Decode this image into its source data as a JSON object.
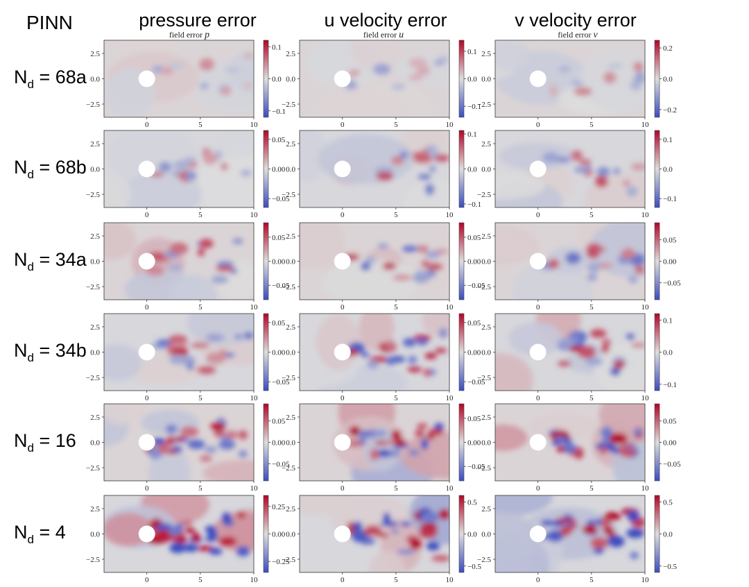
{
  "figure": {
    "method_label": "PINN",
    "column_headers": [
      "pressure error",
      "u velocity error",
      "v velocity error"
    ],
    "subplot_titles": [
      "field error ",
      "field error ",
      "field error "
    ],
    "subplot_title_vars": [
      "p",
      "u",
      "v"
    ],
    "row_labels": [
      {
        "prefix": "N",
        "sub": "d",
        "value": " = 68a"
      },
      {
        "prefix": "N",
        "sub": "d",
        "value": " = 68b"
      },
      {
        "prefix": "N",
        "sub": "d",
        "value": " = 34a"
      },
      {
        "prefix": "N",
        "sub": "d",
        "value": " = 34b"
      },
      {
        "prefix": "N",
        "sub": "d",
        "value": " = 16"
      },
      {
        "prefix": "N",
        "sub": "d",
        "value": " = 4"
      }
    ],
    "colors": {
      "cmap_low": "#3b4cc0",
      "cmap_mid": "#dddddd",
      "cmap_high": "#b40426",
      "cylinder": "#ffffff"
    }
  },
  "chart_data": {
    "type": "heatmap",
    "colormap": "coolwarm",
    "x_ticks": [
      "0",
      "5",
      "10"
    ],
    "y_ticks": [
      "2.5",
      "0.0",
      "−2.5"
    ],
    "xlim": [
      -4,
      10
    ],
    "ylim": [
      -3.8,
      3.8
    ],
    "cylinder": {
      "x": 0,
      "y": 0,
      "r": 0.5
    },
    "rows": [
      {
        "label": "68a",
        "panels": [
          {
            "field": "p",
            "vmin": -0.12,
            "vmax": 0.12,
            "cbar_ticks": [
              0.1,
              0.0,
              -0.1
            ],
            "cbar_labels": [
              "0.1",
              "0.0",
              "−0.1"
            ]
          },
          {
            "field": "u",
            "vmin": -0.14,
            "vmax": 0.14,
            "cbar_ticks": [
              0.1,
              0.0,
              -0.1
            ],
            "cbar_labels": [
              "0.1",
              "0.0",
              "−0.1"
            ]
          },
          {
            "field": "v",
            "vmin": -0.25,
            "vmax": 0.25,
            "cbar_ticks": [
              0.2,
              0.0,
              -0.2
            ],
            "cbar_labels": [
              "0.2",
              "0.0",
              "−0.2"
            ]
          }
        ]
      },
      {
        "label": "68b",
        "panels": [
          {
            "field": "p",
            "vmin": -0.065,
            "vmax": 0.065,
            "cbar_ticks": [
              0.05,
              0.0,
              -0.05
            ],
            "cbar_labels": [
              "0.05",
              "0.00",
              "−0.05"
            ]
          },
          {
            "field": "u",
            "vmin": -0.11,
            "vmax": 0.11,
            "cbar_ticks": [
              0.1,
              0.0,
              -0.1
            ],
            "cbar_labels": [
              "0.1",
              "0.0",
              "−0.1"
            ]
          },
          {
            "field": "v",
            "vmin": -0.13,
            "vmax": 0.13,
            "cbar_ticks": [
              0.1,
              0.0,
              -0.1
            ],
            "cbar_labels": [
              "0.1",
              "0.0",
              "−0.1"
            ]
          }
        ]
      },
      {
        "label": "34a",
        "panels": [
          {
            "field": "p",
            "vmin": -0.08,
            "vmax": 0.08,
            "cbar_ticks": [
              0.05,
              0.0,
              -0.05
            ],
            "cbar_labels": [
              "0.05",
              "0.00",
              "−0.05"
            ]
          },
          {
            "field": "u",
            "vmin": -0.08,
            "vmax": 0.08,
            "cbar_ticks": [
              0.05,
              0.0,
              -0.05
            ],
            "cbar_labels": [
              "0.05",
              "0.00",
              "−0.05"
            ]
          },
          {
            "field": "v",
            "vmin": -0.09,
            "vmax": 0.09,
            "cbar_ticks": [
              0.05,
              0.0,
              -0.05
            ],
            "cbar_labels": [
              "0.05",
              "0.00",
              "−0.05"
            ]
          }
        ]
      },
      {
        "label": "34b",
        "panels": [
          {
            "field": "p",
            "vmin": -0.065,
            "vmax": 0.065,
            "cbar_ticks": [
              0.05,
              0.0,
              -0.05
            ],
            "cbar_labels": [
              "0.05",
              "0.00",
              "−0.05"
            ]
          },
          {
            "field": "u",
            "vmin": -0.065,
            "vmax": 0.065,
            "cbar_ticks": [
              0.05,
              0.0,
              -0.05
            ],
            "cbar_labels": [
              "0.05",
              "0.00",
              "−0.05"
            ]
          },
          {
            "field": "v",
            "vmin": -0.12,
            "vmax": 0.12,
            "cbar_ticks": [
              0.1,
              0.0,
              -0.1
            ],
            "cbar_labels": [
              "0.1",
              "0.0",
              "−0.1"
            ]
          }
        ]
      },
      {
        "label": "16",
        "panels": [
          {
            "field": "p",
            "vmin": -0.09,
            "vmax": 0.09,
            "cbar_ticks": [
              0.05,
              0.0,
              -0.05
            ],
            "cbar_labels": [
              "0.05",
              "0.00",
              "−0.05"
            ]
          },
          {
            "field": "u",
            "vmin": -0.08,
            "vmax": 0.08,
            "cbar_ticks": [
              0.05,
              0.0,
              -0.05
            ],
            "cbar_labels": [
              "0.05",
              "0.00",
              "−0.05"
            ]
          },
          {
            "field": "v",
            "vmin": -0.09,
            "vmax": 0.09,
            "cbar_ticks": [
              0.05,
              0.0,
              -0.05
            ],
            "cbar_labels": [
              "0.05",
              "0.00",
              "−0.05"
            ]
          }
        ]
      },
      {
        "label": "4",
        "panels": [
          {
            "field": "p",
            "vmin": -0.35,
            "vmax": 0.35,
            "cbar_ticks": [
              0.25,
              0.0,
              -0.25
            ],
            "cbar_labels": [
              "0.25",
              "0.00",
              "−0.25"
            ]
          },
          {
            "field": "u",
            "vmin": -0.6,
            "vmax": 0.6,
            "cbar_ticks": [
              0.5,
              0.0,
              -0.5
            ],
            "cbar_labels": [
              "0.5",
              "0.0",
              "−0.5"
            ]
          },
          {
            "field": "v",
            "vmin": -0.6,
            "vmax": 0.6,
            "cbar_ticks": [
              0.5,
              0.0,
              -0.5
            ],
            "cbar_labels": [
              "0.5",
              "0.0",
              "−0.5"
            ]
          }
        ]
      }
    ]
  }
}
